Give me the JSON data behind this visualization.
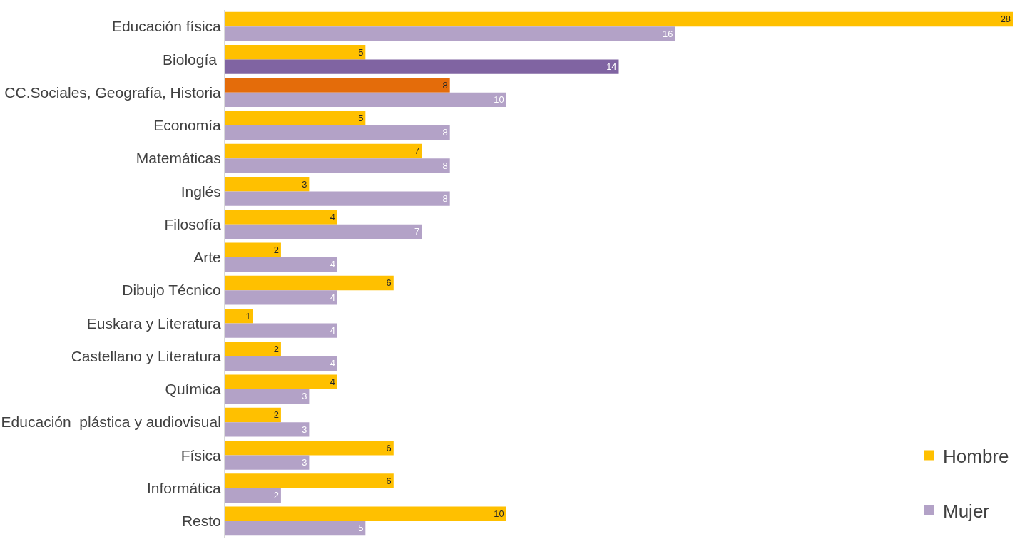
{
  "chart_data": {
    "type": "bar",
    "orientation": "horizontal",
    "data_labels": true,
    "legend": "bottom right",
    "categories": [
      "Educación física",
      "Biología ",
      "CC.Sociales, Geografía, Historia",
      "Economía",
      "Matemáticas",
      "Inglés",
      "Filosofía",
      "Arte",
      "Dibujo Técnico",
      "Euskara y Literatura",
      "Castellano y Literatura",
      "Química",
      "Educación  plástica y audiovisual",
      "Física",
      "Informática",
      "Resto"
    ],
    "series": [
      {
        "name": "Hombre",
        "color": "#ffc000",
        "colors": [
          "#ffc000",
          "#ffc000",
          "#e46c0a",
          "#ffc000",
          "#ffc000",
          "#ffc000",
          "#ffc000",
          "#ffc000",
          "#ffc000",
          "#ffc000",
          "#ffc000",
          "#ffc000",
          "#ffc000",
          "#ffc000",
          "#ffc000",
          "#ffc000"
        ],
        "values": [
          28,
          5,
          8,
          5,
          7,
          3,
          4,
          2,
          6,
          1,
          2,
          4,
          2,
          6,
          6,
          10
        ]
      },
      {
        "name": "Mujer",
        "color": "#b3a2c7",
        "colors": [
          "#b3a2c7",
          "#8064a2",
          "#b3a2c7",
          "#b3a2c7",
          "#b3a2c7",
          "#b3a2c7",
          "#b3a2c7",
          "#b3a2c7",
          "#b3a2c7",
          "#b3a2c7",
          "#b3a2c7",
          "#b3a2c7",
          "#b3a2c7",
          "#b3a2c7",
          "#b3a2c7",
          "#b3a2c7"
        ],
        "values": [
          16,
          14,
          10,
          8,
          8,
          8,
          7,
          4,
          4,
          4,
          4,
          3,
          3,
          3,
          2,
          5
        ]
      }
    ]
  }
}
